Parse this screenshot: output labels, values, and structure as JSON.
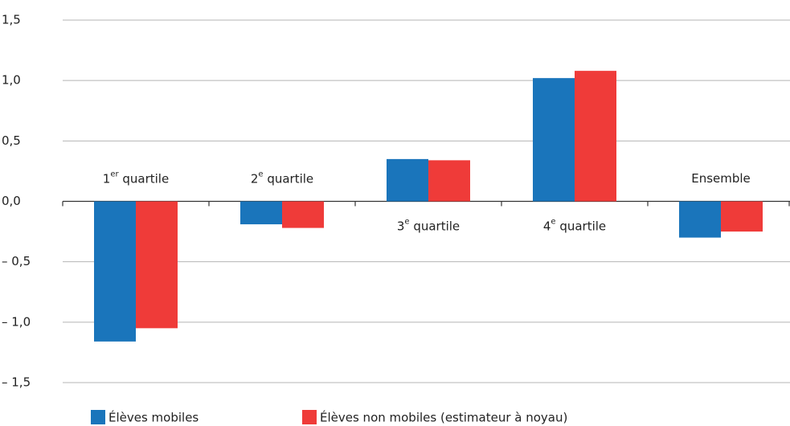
{
  "chart_data": {
    "type": "bar",
    "categories": [
      "1er quartile",
      "2e quartile",
      "3e quartile",
      "4e quartile",
      "Ensemble"
    ],
    "series": [
      {
        "name": "Élèves mobiles",
        "color": "#1a75bb",
        "values": [
          -1.16,
          -0.19,
          0.35,
          1.02,
          -0.3
        ]
      },
      {
        "name": "Élèves non mobiles (estimateur à noyau)",
        "color": "#ef3b39",
        "values": [
          -1.05,
          -0.22,
          0.34,
          1.08,
          -0.25
        ]
      }
    ],
    "ylim": [
      -1.5,
      1.5
    ],
    "yticks": [
      {
        "value": 1.5,
        "label": "1,5"
      },
      {
        "value": 1.0,
        "label": "1,0"
      },
      {
        "value": 0.5,
        "label": "0,5"
      },
      {
        "value": 0.0,
        "label": "0,0"
      },
      {
        "value": -0.5,
        "label": "– 0,5"
      },
      {
        "value": -1.0,
        "label": "– 1,0"
      },
      {
        "value": -1.5,
        "label": "– 1,5"
      }
    ],
    "grid": true,
    "legend": "bottom"
  }
}
